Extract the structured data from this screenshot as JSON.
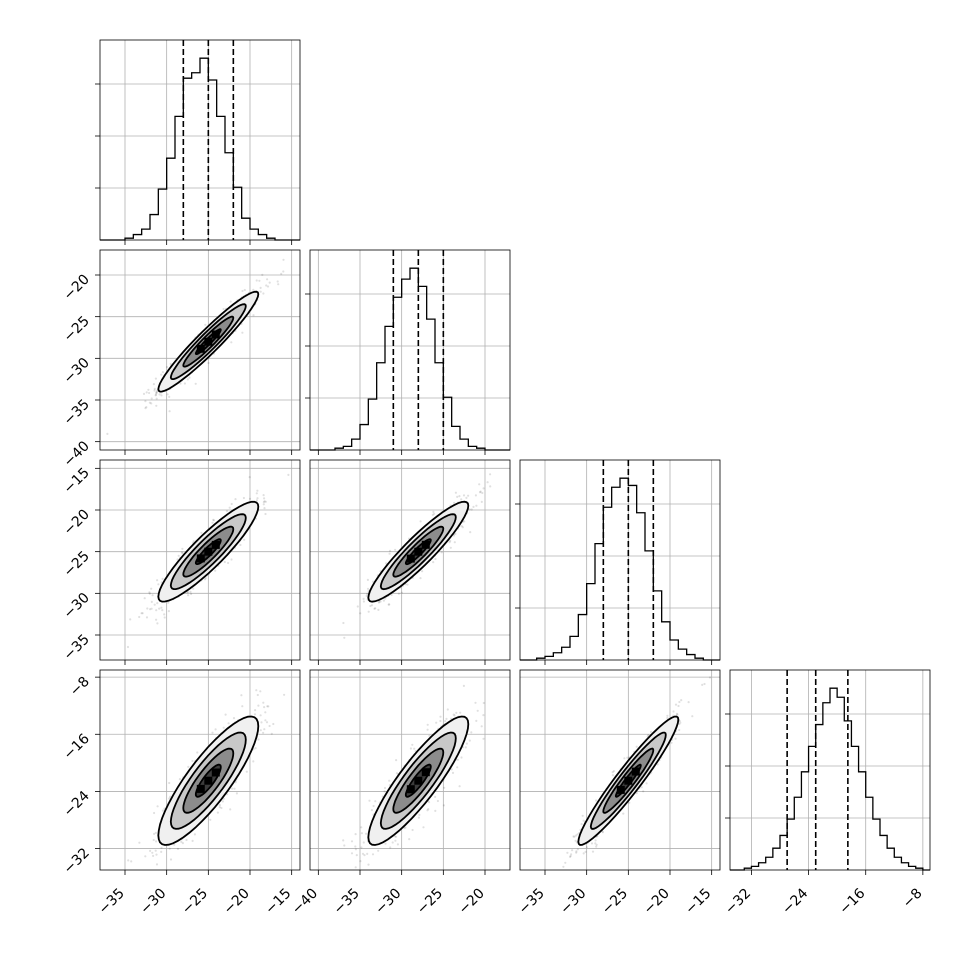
{
  "chart_data": {
    "type": "corner",
    "parameters": 4,
    "grid": true,
    "marginals": [
      {
        "xlim": [
          -38,
          -14
        ],
        "bins": [
          -37.5,
          -36.5,
          -35.5,
          -34.5,
          -33.5,
          -32.5,
          -31.5,
          -30.5,
          -29.5,
          -28.5,
          -27.5,
          -26.5,
          -25.5,
          -24.5,
          -23.5,
          -22.5,
          -21.5,
          -20.5,
          -19.5,
          -18.5,
          -17.5,
          -16.5,
          -15.5,
          -14.5
        ],
        "counts": [
          0,
          0,
          0,
          1,
          3,
          6,
          14,
          28,
          45,
          68,
          89,
          92,
          100,
          88,
          68,
          48,
          29,
          12,
          6,
          3,
          1,
          0,
          0,
          0
        ],
        "quantiles": [
          -28.0,
          -25.0,
          -22.0
        ]
      },
      {
        "xlim": [
          -41,
          -17
        ],
        "bins": [
          -40.5,
          -39.5,
          -38.5,
          -37.5,
          -36.5,
          -35.5,
          -34.5,
          -33.5,
          -32.5,
          -31.5,
          -30.5,
          -29.5,
          -28.5,
          -27.5,
          -26.5,
          -25.5,
          -24.5,
          -23.5,
          -22.5,
          -21.5,
          -20.5,
          -19.5,
          -18.5,
          -17.5
        ],
        "counts": [
          0,
          0,
          0,
          1,
          2,
          6,
          14,
          28,
          48,
          68,
          84,
          94,
          100,
          90,
          72,
          48,
          29,
          13,
          6,
          2,
          1,
          0,
          0,
          0
        ],
        "quantiles": [
          -31.0,
          -28.0,
          -25.0
        ]
      },
      {
        "xlim": [
          -38,
          -14
        ],
        "bins": [
          -37.5,
          -36.5,
          -35.5,
          -34.5,
          -33.5,
          -32.5,
          -31.5,
          -30.5,
          -29.5,
          -28.5,
          -27.5,
          -26.5,
          -25.5,
          -24.5,
          -23.5,
          -22.5,
          -21.5,
          -20.5,
          -19.5,
          -18.5,
          -17.5,
          -16.5,
          -15.5,
          -14.5
        ],
        "counts": [
          0,
          0,
          1,
          2,
          4,
          7,
          13,
          25,
          42,
          64,
          84,
          95,
          100,
          96,
          81,
          60,
          38,
          21,
          11,
          6,
          3,
          1,
          0,
          0
        ],
        "quantiles": [
          -28.0,
          -25.0,
          -22.0
        ]
      },
      {
        "xlim": [
          -35,
          -7
        ],
        "bins": [
          -34.5,
          -33.5,
          -32.5,
          -31.5,
          -30.5,
          -29.5,
          -28.5,
          -27.5,
          -26.5,
          -25.5,
          -24.5,
          -23.5,
          -22.5,
          -21.5,
          -20.5,
          -19.5,
          -18.5,
          -17.5,
          -16.5,
          -15.5,
          -14.5,
          -13.5,
          -12.5,
          -11.5,
          -10.5,
          -9.5,
          -8.5,
          -7.5
        ],
        "counts": [
          0,
          0,
          1,
          2,
          4,
          7,
          12,
          19,
          28,
          40,
          54,
          68,
          80,
          92,
          100,
          95,
          82,
          68,
          54,
          40,
          28,
          19,
          12,
          7,
          4,
          2,
          1,
          0
        ],
        "quantiles": [
          -27.0,
          -23.0,
          -18.5
        ]
      }
    ],
    "joint": [
      {
        "row": 1,
        "col": 0,
        "xlim": [
          -38,
          -14
        ],
        "ylim": [
          -41,
          -17
        ],
        "center": [
          -25,
          -28
        ],
        "sd": [
          3,
          3
        ],
        "rho": 0.95
      },
      {
        "row": 2,
        "col": 0,
        "xlim": [
          -38,
          -14
        ],
        "ylim": [
          -38,
          -14
        ],
        "center": [
          -25,
          -25
        ],
        "sd": [
          3,
          3
        ],
        "rho": 0.9
      },
      {
        "row": 2,
        "col": 1,
        "xlim": [
          -41,
          -17
        ],
        "ylim": [
          -38,
          -14
        ],
        "center": [
          -28,
          -25
        ],
        "sd": [
          3,
          3
        ],
        "rho": 0.92
      },
      {
        "row": 3,
        "col": 0,
        "xlim": [
          -38,
          -14
        ],
        "ylim": [
          -35,
          -7
        ],
        "center": [
          -25,
          -22.5
        ],
        "sd": [
          3,
          4.5
        ],
        "rho": 0.85
      },
      {
        "row": 3,
        "col": 1,
        "xlim": [
          -41,
          -17
        ],
        "ylim": [
          -35,
          -7
        ],
        "center": [
          -28,
          -22.5
        ],
        "sd": [
          3,
          4.5
        ],
        "rho": 0.88
      },
      {
        "row": 3,
        "col": 2,
        "xlim": [
          -38,
          -14
        ],
        "ylim": [
          -35,
          -7
        ],
        "center": [
          -25,
          -22.5
        ],
        "sd": [
          3,
          4.5
        ],
        "rho": 0.95
      }
    ],
    "x_tick_labels": [
      [
        "−35",
        "−30",
        "−25",
        "−20",
        "−15"
      ],
      [
        "−40",
        "−35",
        "−30",
        "−25",
        "−20"
      ],
      [
        "−35",
        "−30",
        "−25",
        "−20",
        "−15"
      ],
      [
        "−32",
        "−24",
        "−16",
        "−8"
      ]
    ],
    "x_tick_values": [
      [
        -35,
        -30,
        -25,
        -20,
        -15
      ],
      [
        -40,
        -35,
        -30,
        -25,
        -20
      ],
      [
        -35,
        -30,
        -25,
        -20,
        -15
      ],
      [
        -32,
        -24,
        -16,
        -8
      ]
    ],
    "y_tick_labels": [
      [],
      [
        "−20",
        "−25",
        "−30",
        "−35",
        "−40"
      ],
      [
        "−15",
        "−20",
        "−25",
        "−30",
        "−35"
      ],
      [
        "−8",
        "−16",
        "−24",
        "−32"
      ]
    ],
    "y_tick_values": [
      [],
      [
        -20,
        -25,
        -30,
        -35,
        -40
      ],
      [
        -15,
        -20,
        -25,
        -30,
        -35
      ],
      [
        -8,
        -16,
        -24,
        -32
      ]
    ]
  }
}
